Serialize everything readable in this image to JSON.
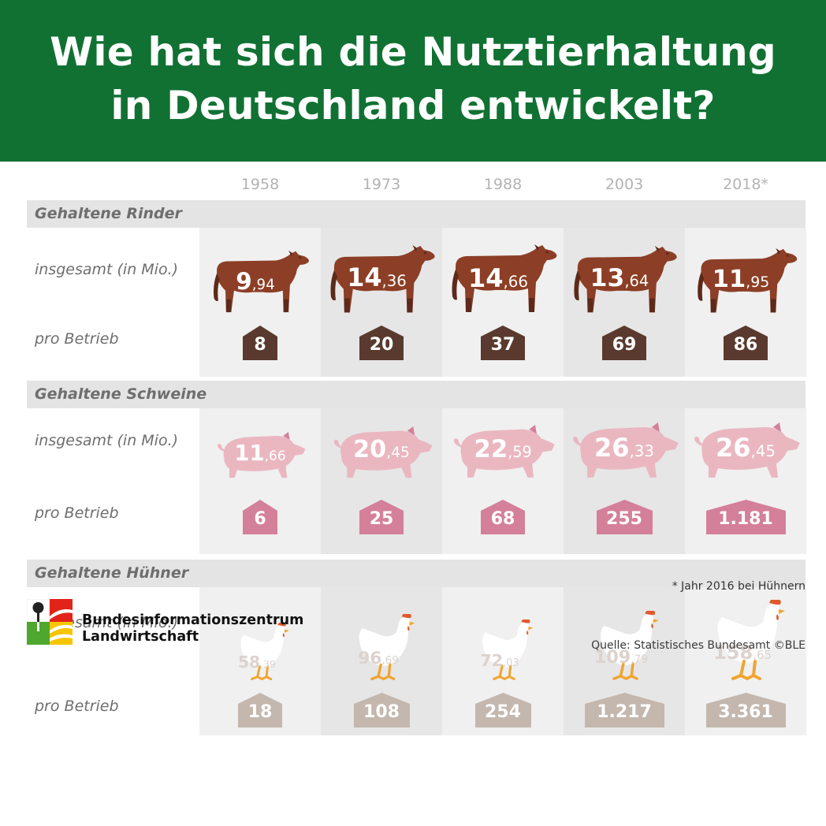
{
  "header": {
    "title_line1": "Wie hat sich die Nutztierhaltung",
    "title_line2": "in Deutschland entwickelt?"
  },
  "colors": {
    "header_bg": "#117133",
    "cattle": "#8c3f26",
    "cattle_dark": "#5c2a1a",
    "cattle_badge": "#5a3a2e",
    "pig": "#eab7c1",
    "pig_badge": "#d4809b",
    "chicken": "#ffffff",
    "chicken_text": "#dcd3ce",
    "chicken_badge": "#c4b7ad",
    "comb": "#e05a2b",
    "legs": "#f0a531",
    "col_light": "#f0f0f0",
    "col_dark": "#e6e6e6"
  },
  "chart_data": {
    "type": "table",
    "columns": [
      "1958",
      "1973",
      "1988",
      "2003",
      "2018*"
    ],
    "row_labels": {
      "total": "insgesamt (in Mio.)",
      "per_farm": "pro Betrieb"
    },
    "sections": [
      {
        "title": "Gehaltene Rinder",
        "animal": "cow",
        "totals": [
          {
            "int": "9",
            "dec": "94"
          },
          {
            "int": "14",
            "dec": "36"
          },
          {
            "int": "14",
            "dec": "66"
          },
          {
            "int": "13",
            "dec": "64"
          },
          {
            "int": "11",
            "dec": "95"
          }
        ],
        "total_values": [
          9.94,
          14.36,
          14.66,
          13.64,
          11.95
        ],
        "per_farm": [
          "8",
          "20",
          "37",
          "69",
          "86"
        ]
      },
      {
        "title": "Gehaltene Schweine",
        "animal": "pig",
        "totals": [
          {
            "int": "11",
            "dec": "66"
          },
          {
            "int": "20",
            "dec": "45"
          },
          {
            "int": "22",
            "dec": "59"
          },
          {
            "int": "26",
            "dec": "33"
          },
          {
            "int": "26",
            "dec": "45"
          }
        ],
        "total_values": [
          11.66,
          20.45,
          22.59,
          26.33,
          26.45
        ],
        "per_farm": [
          "6",
          "25",
          "68",
          "255",
          "1.181"
        ]
      },
      {
        "title": "Gehaltene Hühner",
        "animal": "chicken",
        "totals": [
          {
            "int": "58",
            "dec": "39"
          },
          {
            "int": "96",
            "dec": "69"
          },
          {
            "int": "72",
            "dec": "03"
          },
          {
            "int": "109",
            "dec": "79"
          },
          {
            "int": "158",
            "dec": "65"
          }
        ],
        "total_values": [
          58.39,
          96.69,
          72.03,
          109.79,
          158.65
        ],
        "per_farm": [
          "18",
          "108",
          "254",
          "1.217",
          "3.361"
        ]
      }
    ]
  },
  "footer": {
    "footnote": "* Jahr 2016 bei Hühnern",
    "org_line1": "Bundesinformationszentrum",
    "org_line2": "Landwirtschaft",
    "source": "Quelle: Statistisches Bundesamt ©BLE"
  }
}
